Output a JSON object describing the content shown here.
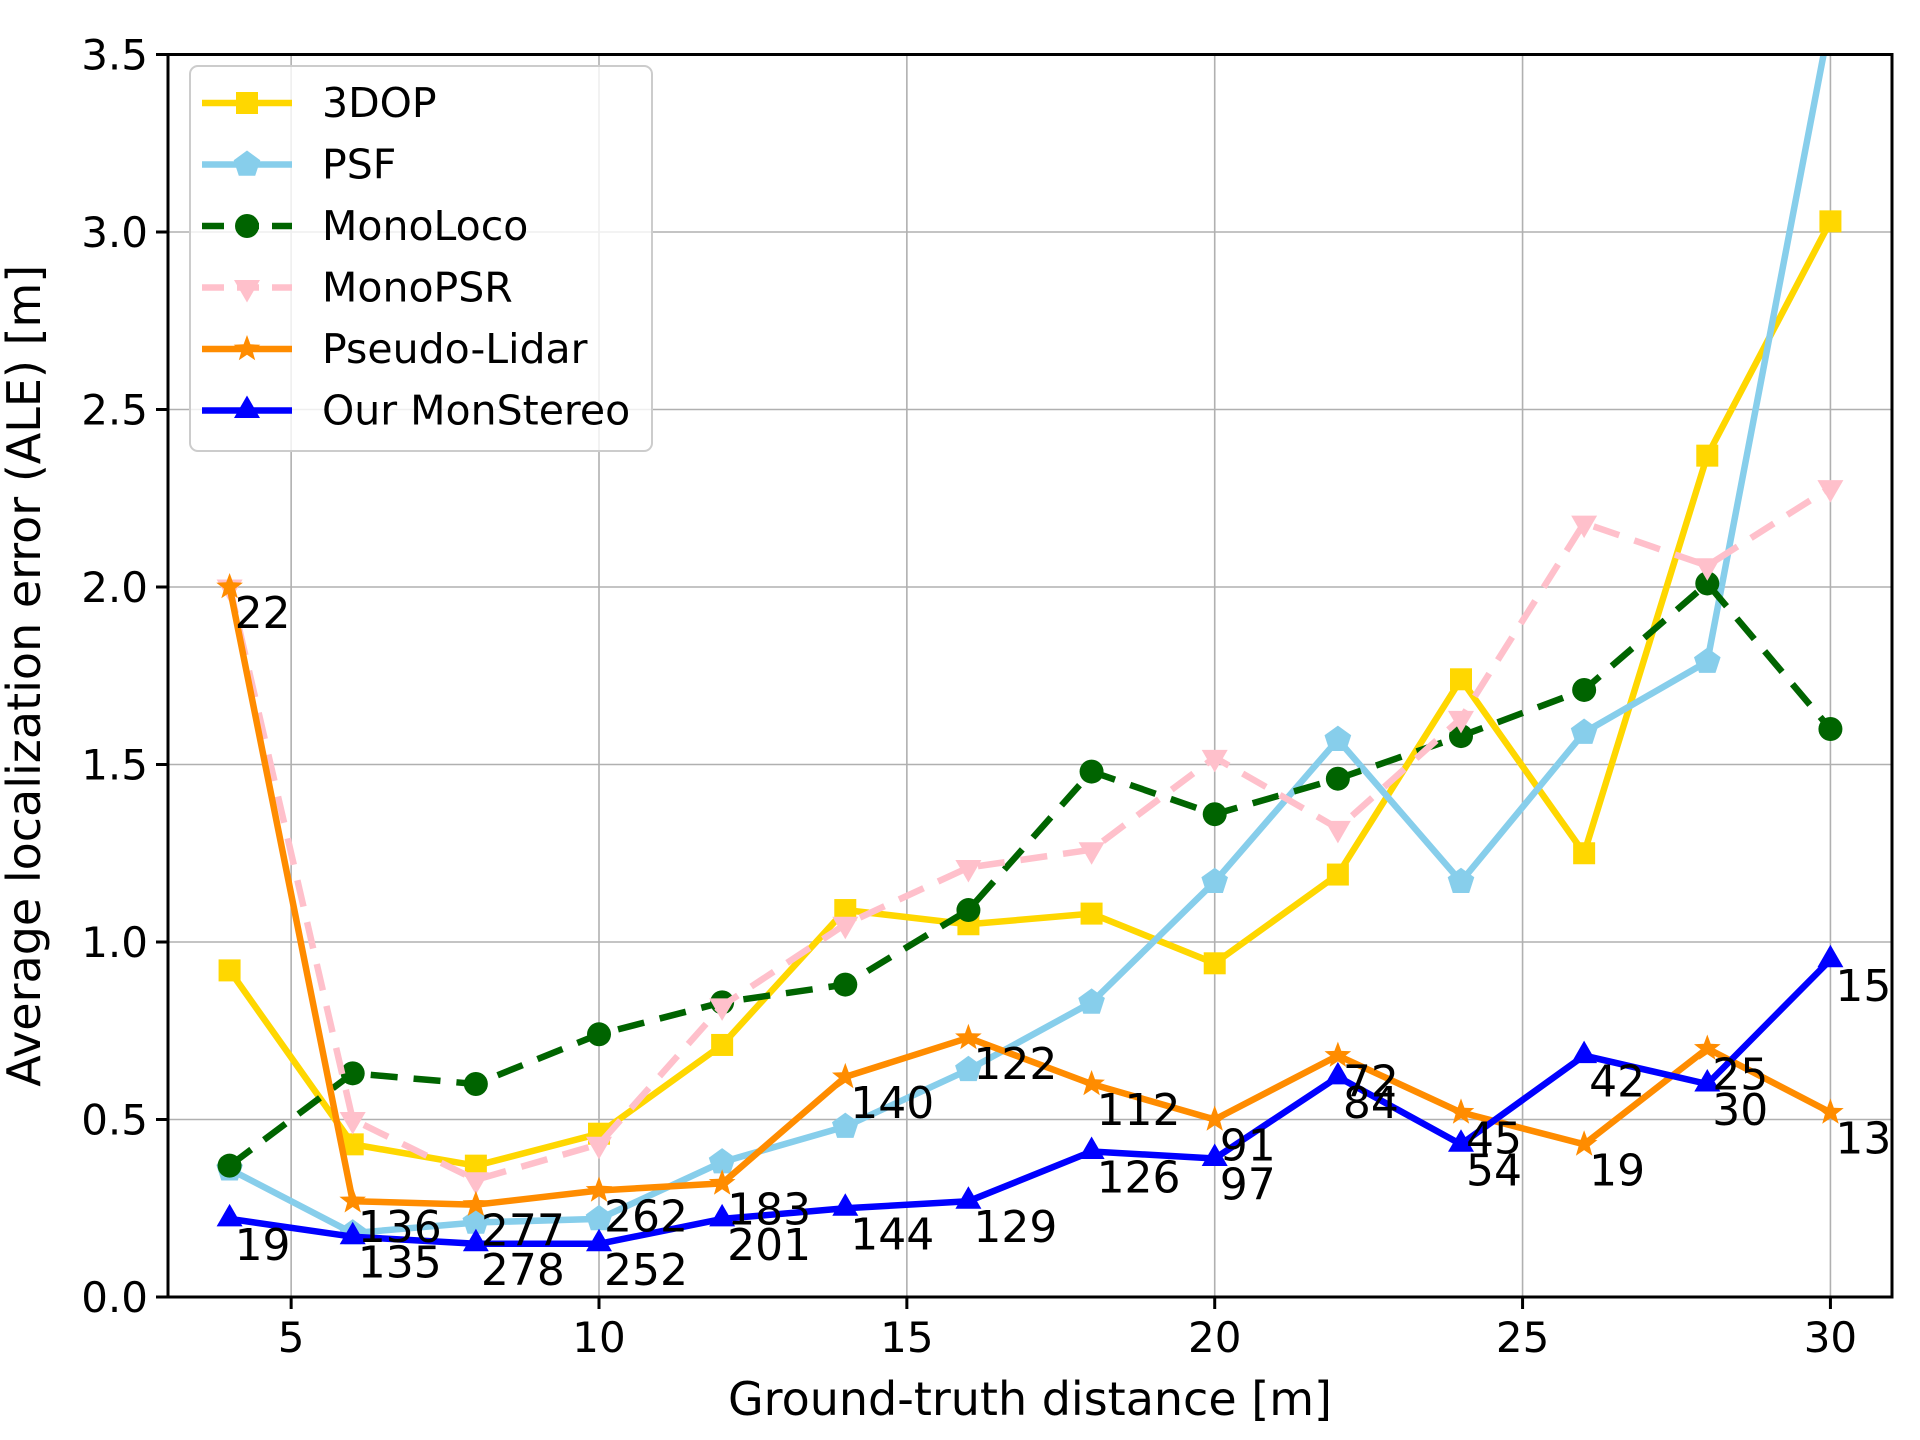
{
  "chart_data": {
    "type": "line",
    "title": "",
    "xlabel": "Ground-truth distance [m]",
    "ylabel": "Average localization error (ALE) [m]",
    "xlim": [
      3,
      31
    ],
    "ylim": [
      0,
      3.5
    ],
    "xticks": [
      5,
      10,
      15,
      20,
      25,
      30
    ],
    "yticks": [
      0.0,
      0.5,
      1.0,
      1.5,
      2.0,
      2.5,
      3.0,
      3.5
    ],
    "grid": true,
    "legend_position": "upper-left",
    "x": [
      4,
      6,
      8,
      10,
      12,
      14,
      16,
      18,
      20,
      22,
      24,
      26,
      28,
      30
    ],
    "series": [
      {
        "name": "3DOP",
        "color": "#FFD700",
        "linestyle": "solid",
        "marker": "square",
        "values": [
          0.92,
          0.43,
          0.37,
          0.46,
          0.71,
          1.09,
          1.05,
          1.08,
          0.94,
          1.19,
          1.74,
          1.25,
          2.37,
          3.03
        ]
      },
      {
        "name": "PSF",
        "color": "#87CEEB",
        "linestyle": "solid",
        "marker": "pentagon",
        "values": [
          0.36,
          0.18,
          0.21,
          0.22,
          0.38,
          0.48,
          0.64,
          0.83,
          1.17,
          1.57,
          1.17,
          1.59,
          1.79,
          3.6
        ]
      },
      {
        "name": "MonoLoco",
        "color": "#006400",
        "linestyle": "dashed",
        "marker": "circle",
        "values": [
          0.37,
          0.63,
          0.6,
          0.74,
          0.83,
          0.88,
          1.09,
          1.48,
          1.36,
          1.46,
          1.58,
          1.71,
          2.01,
          1.6
        ]
      },
      {
        "name": "MonoPSR",
        "color": "#FFC0CB",
        "linestyle": "dashed",
        "marker": "triangle-down",
        "values": [
          2.0,
          0.5,
          0.33,
          0.43,
          0.82,
          1.05,
          1.21,
          1.26,
          1.52,
          1.32,
          1.63,
          2.18,
          2.06,
          2.28
        ]
      },
      {
        "name": "Pseudo-Lidar",
        "color": "#FF8C00",
        "linestyle": "solid",
        "marker": "star",
        "values": [
          2.0,
          0.27,
          0.26,
          0.3,
          0.32,
          0.62,
          0.73,
          0.6,
          0.5,
          0.68,
          0.52,
          0.43,
          0.7,
          0.52
        ]
      },
      {
        "name": "Our MonStereo",
        "color": "#0000FF",
        "linestyle": "solid",
        "marker": "triangle-up",
        "values": [
          0.22,
          0.17,
          0.15,
          0.15,
          0.22,
          0.25,
          0.27,
          0.41,
          0.39,
          0.62,
          0.43,
          0.68,
          0.6,
          0.95
        ]
      }
    ],
    "point_annotations": [
      {
        "series": "Pseudo-Lidar",
        "counts": [
          22,
          136,
          277,
          262,
          183,
          140,
          122,
          112,
          91,
          72,
          45,
          19,
          25,
          13
        ]
      },
      {
        "series": "Our MonStereo",
        "counts": [
          19,
          135,
          278,
          252,
          201,
          144,
          129,
          126,
          97,
          84,
          54,
          42,
          30,
          15
        ]
      }
    ],
    "legend_labels": [
      "3DOP",
      "PSF",
      "MonoLoco",
      "MonoPSR",
      "Pseudo-Lidar",
      "Our MonStereo"
    ],
    "colors": {
      "background": "#FFFFFF",
      "grid": "#B0B0B0",
      "spine": "#000000",
      "text": "#000000",
      "legend_border": "#CCCCCC"
    }
  }
}
